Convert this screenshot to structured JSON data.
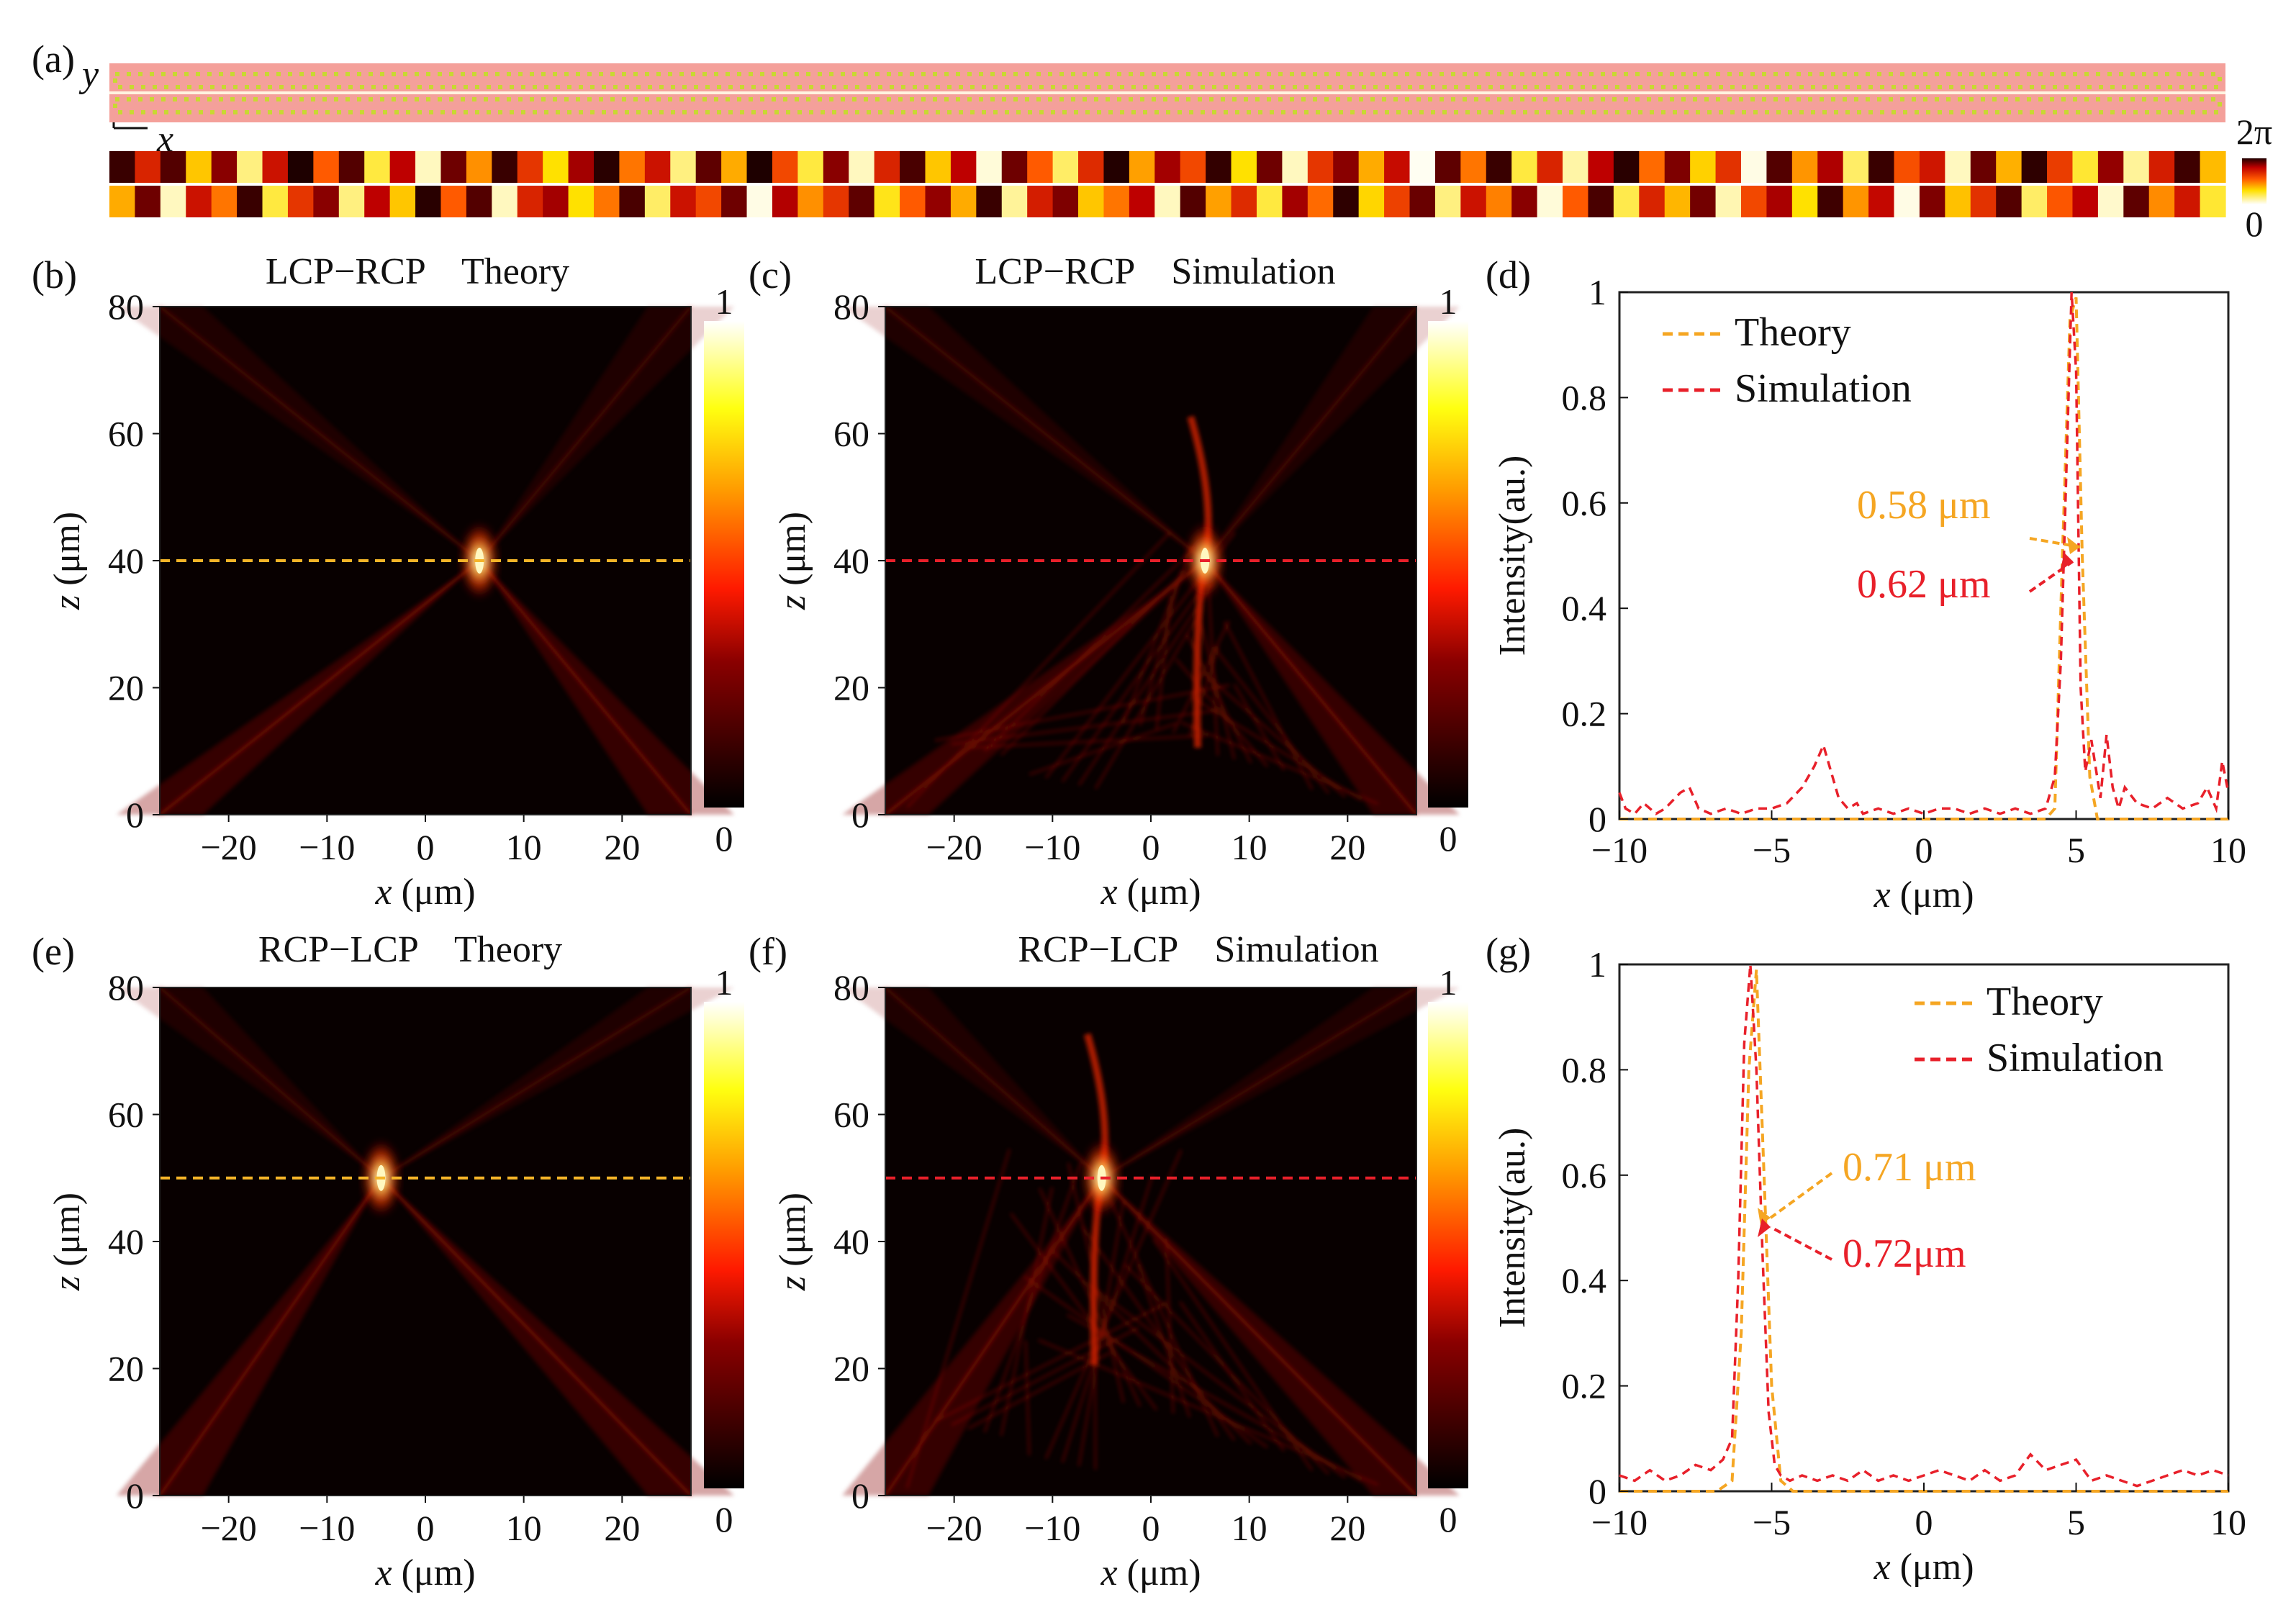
{
  "panel_a": {
    "label": "(a)",
    "axis_y": "y",
    "axis_x": "x",
    "colorbar": {
      "max": "2π",
      "min": "0"
    },
    "phase_rows": [
      [
        0.05,
        0.4,
        0.1,
        0.75,
        0.2,
        0.9,
        0.35,
        0.0,
        0.55,
        0.1,
        0.85,
        0.3,
        0.95,
        0.15,
        0.65,
        0.05,
        0.45,
        0.8,
        0.25,
        0.02,
        0.6,
        0.35,
        0.9,
        0.12,
        0.7,
        0.0,
        0.5,
        0.85,
        0.2,
        0.95,
        0.4,
        0.08,
        0.75,
        0.3,
        0.97,
        0.15,
        0.55,
        0.88,
        0.42,
        0.01,
        0.68,
        0.25,
        0.5,
        0.04,
        0.8,
        0.15,
        0.95,
        0.45,
        0.2,
        0.7,
        0.33,
        0.99,
        0.12,
        0.6,
        0.05,
        0.85,
        0.4,
        0.93,
        0.3,
        0.02,
        0.58,
        0.18,
        0.77,
        0.44,
        0.98,
        0.1,
        0.66,
        0.27,
        0.88,
        0.05,
        0.52,
        0.36,
        0.95,
        0.14,
        0.71,
        0.03,
        0.47,
        0.84,
        0.22,
        0.92,
        0.38,
        0.06,
        0.73
      ],
      [
        0.7,
        0.15,
        0.95,
        0.35,
        0.6,
        0.05,
        0.85,
        0.45,
        0.2,
        0.9,
        0.3,
        0.75,
        0.02,
        0.55,
        0.1,
        0.95,
        0.4,
        0.25,
        0.8,
        0.6,
        0.08,
        0.88,
        0.35,
        0.5,
        0.15,
        0.98,
        0.28,
        0.65,
        0.45,
        0.12,
        0.82,
        0.55,
        0.22,
        0.7,
        0.05,
        0.92,
        0.38,
        0.18,
        0.75,
        0.6,
        0.3,
        0.95,
        0.1,
        0.68,
        0.42,
        0.85,
        0.25,
        0.58,
        0.03,
        0.78,
        0.48,
        0.14,
        0.9,
        0.35,
        0.62,
        0.2,
        0.97,
        0.55,
        0.08,
        0.86,
        0.4,
        0.72,
        0.16,
        0.94,
        0.5,
        0.26,
        0.8,
        0.06,
        0.66,
        0.32,
        0.98,
        0.18,
        0.74,
        0.44,
        0.1,
        0.88,
        0.54,
        0.3,
        0.96,
        0.12,
        0.64,
        0.36,
        0.84
      ]
    ]
  },
  "panels": {
    "b": {
      "label": "(b)",
      "title": "LCP−RCP    Theory",
      "xlabel_var": "x",
      "xlabel_unit": " (μm)",
      "ylabel_var": "z",
      "ylabel_unit": " (μm)",
      "cb_max": "1",
      "cb_min": "0"
    },
    "c": {
      "label": "(c)",
      "title": "LCP−RCP    Simulation",
      "xlabel_var": "x",
      "xlabel_unit": " (μm)",
      "ylabel_var": "z",
      "ylabel_unit": " (μm)",
      "cb_max": "1",
      "cb_min": "0"
    },
    "d": {
      "label": "(d)",
      "xlabel_var": "x",
      "xlabel_unit": " (μm)",
      "ylabel": "Intensity(au.)",
      "legend": [
        "Theory",
        "Simulation"
      ],
      "annot_theory": "0.58 μm",
      "annot_sim": "0.62 μm"
    },
    "e": {
      "label": "(e)",
      "title": "RCP−LCP    Theory",
      "xlabel_var": "x",
      "xlabel_unit": " (μm)",
      "ylabel_var": "z",
      "ylabel_unit": " (μm)",
      "cb_max": "1",
      "cb_min": "0"
    },
    "f": {
      "label": "(f)",
      "title": "RCP−LCP    Simulation",
      "xlabel_var": "x",
      "xlabel_unit": " (μm)",
      "ylabel_var": "z",
      "ylabel_unit": " (μm)",
      "cb_max": "1",
      "cb_min": "0"
    },
    "g": {
      "label": "(g)",
      "xlabel_var": "x",
      "xlabel_unit": " (μm)",
      "ylabel": "Intensity(au.)",
      "legend": [
        "Theory",
        "Simulation"
      ],
      "annot_theory": "0.71 μm",
      "annot_sim": "0.72μm"
    }
  },
  "chart_data": [
    {
      "type": "heatmap",
      "panel": "b",
      "title": "LCP−RCP Theory",
      "xlabel": "x (μm)",
      "ylabel": "z (μm)",
      "xlim": [
        -27,
        27
      ],
      "ylim": [
        0,
        80
      ],
      "xticks": [
        -20,
        -10,
        0,
        10,
        20
      ],
      "yticks": [
        0,
        20,
        40,
        60,
        80
      ],
      "focus": {
        "x": 5.5,
        "z": 40
      },
      "guide_line_z": 40,
      "guide_color": "#f5b428",
      "colorbar": [
        0,
        1
      ]
    },
    {
      "type": "heatmap",
      "panel": "c",
      "title": "LCP−RCP Simulation",
      "xlabel": "x (μm)",
      "ylabel": "z (μm)",
      "xlim": [
        -27,
        27
      ],
      "ylim": [
        0,
        80
      ],
      "xticks": [
        -20,
        -10,
        0,
        10,
        20
      ],
      "yticks": [
        0,
        20,
        40,
        60,
        80
      ],
      "focus": {
        "x": 5.5,
        "z": 40
      },
      "guide_line_z": 40,
      "guide_color": "#e8202a",
      "colorbar": [
        0,
        1
      ]
    },
    {
      "type": "line",
      "panel": "d",
      "xlabel": "x (μm)",
      "ylabel": "Intensity(au.)",
      "xlim": [
        -10,
        10
      ],
      "ylim": [
        0,
        1
      ],
      "xticks": [
        -10,
        -5,
        0,
        5,
        10
      ],
      "yticks": [
        0,
        0.2,
        0.4,
        0.6,
        0.8,
        1
      ],
      "yticklabels": [
        "0",
        "0.2",
        "0.4",
        "0.6",
        "0.8",
        "1"
      ],
      "series": [
        {
          "name": "Theory",
          "color": "#f5a623",
          "x": [
            -10,
            4.0,
            4.3,
            4.55,
            4.8,
            5.0,
            5.2,
            5.45,
            5.7,
            10
          ],
          "y": [
            0,
            0,
            0.02,
            0.5,
            0.95,
            0.99,
            0.5,
            0.08,
            0,
            0
          ]
        },
        {
          "name": "Simulation",
          "color": "#e8202a",
          "x": [
            -10,
            -9.8,
            -9.5,
            -9.2,
            -8.8,
            -8.5,
            -8.0,
            -7.7,
            -7.4,
            -7.0,
            -6.5,
            -6.0,
            -5.5,
            -5.0,
            -4.5,
            -4.0,
            -3.6,
            -3.3,
            -3.0,
            -2.8,
            -2.5,
            -2.2,
            -2.0,
            -1.5,
            -1.0,
            -0.5,
            0,
            0.5,
            1.0,
            1.5,
            2.0,
            2.5,
            3.0,
            3.5,
            4.0,
            4.3,
            4.5,
            4.7,
            4.85,
            5.0,
            5.15,
            5.3,
            5.5,
            5.8,
            6.0,
            6.2,
            6.4,
            6.6,
            7.0,
            7.5,
            8.0,
            8.5,
            9.0,
            9.3,
            9.6,
            9.8,
            10
          ],
          "y": [
            0.05,
            0.02,
            0.01,
            0.03,
            0.01,
            0.02,
            0.05,
            0.06,
            0.02,
            0.01,
            0.02,
            0.01,
            0.02,
            0.02,
            0.03,
            0.06,
            0.1,
            0.14,
            0.08,
            0.04,
            0.02,
            0.03,
            0.01,
            0.02,
            0.01,
            0.02,
            0.01,
            0.02,
            0.02,
            0.01,
            0.02,
            0.01,
            0.02,
            0.01,
            0.02,
            0.08,
            0.3,
            0.7,
            1.0,
            0.85,
            0.25,
            0.09,
            0.15,
            0.04,
            0.16,
            0.06,
            0.02,
            0.06,
            0.03,
            0.02,
            0.04,
            0.02,
            0.03,
            0.06,
            0.02,
            0.11,
            0.05
          ]
        }
      ],
      "annotations": [
        "0.58 μm",
        "0.62 μm"
      ]
    },
    {
      "type": "heatmap",
      "panel": "e",
      "title": "RCP−LCP Theory",
      "xlabel": "x (μm)",
      "ylabel": "z (μm)",
      "xlim": [
        -27,
        27
      ],
      "ylim": [
        0,
        80
      ],
      "xticks": [
        -20,
        -10,
        0,
        10,
        20
      ],
      "yticks": [
        0,
        20,
        40,
        60,
        80
      ],
      "focus": {
        "x": -4.5,
        "z": 50
      },
      "guide_line_z": 50,
      "guide_color": "#f5b428",
      "colorbar": [
        0,
        1
      ]
    },
    {
      "type": "heatmap",
      "panel": "f",
      "title": "RCP−LCP Simulation",
      "xlabel": "x (μm)",
      "ylabel": "z (μm)",
      "xlim": [
        -27,
        27
      ],
      "ylim": [
        0,
        80
      ],
      "xticks": [
        -20,
        -10,
        0,
        10,
        20
      ],
      "yticks": [
        0,
        20,
        40,
        60,
        80
      ],
      "focus": {
        "x": -5,
        "z": 50
      },
      "guide_line_z": 50,
      "guide_color": "#e8202a",
      "colorbar": [
        0,
        1
      ]
    },
    {
      "type": "line",
      "panel": "g",
      "xlabel": "x (μm)",
      "ylabel": "Intensity(au.)",
      "xlim": [
        -10,
        10
      ],
      "ylim": [
        0,
        1
      ],
      "xticks": [
        -10,
        -5,
        0,
        5,
        10
      ],
      "yticks": [
        0,
        0.2,
        0.4,
        0.6,
        0.8,
        1
      ],
      "yticklabels": [
        "0",
        "0.2",
        "0.4",
        "0.6",
        "0.8",
        "1"
      ],
      "series": [
        {
          "name": "Theory",
          "color": "#f5a623",
          "x": [
            -10,
            -6.8,
            -6.3,
            -6.0,
            -5.75,
            -5.5,
            -5.25,
            -5.0,
            -4.7,
            -4.3,
            10
          ],
          "y": [
            0,
            0,
            0.02,
            0.3,
            0.8,
            0.99,
            0.6,
            0.2,
            0.02,
            0,
            0
          ]
        },
        {
          "name": "Simulation",
          "color": "#e8202a",
          "x": [
            -10,
            -9.5,
            -9.0,
            -8.5,
            -8.0,
            -7.5,
            -7.0,
            -6.6,
            -6.3,
            -6.1,
            -5.9,
            -5.7,
            -5.5,
            -5.3,
            -5.1,
            -4.9,
            -4.7,
            -4.4,
            -4.0,
            -3.5,
            -3.0,
            -2.5,
            -2.0,
            -1.5,
            -1.0,
            -0.5,
            0,
            0.5,
            1.0,
            1.5,
            2.0,
            2.5,
            3.0,
            3.5,
            4.0,
            4.5,
            5.0,
            5.5,
            6.0,
            6.5,
            7.0,
            7.5,
            8.0,
            8.5,
            9.0,
            9.5,
            10
          ],
          "y": [
            0.03,
            0.02,
            0.04,
            0.02,
            0.03,
            0.05,
            0.04,
            0.06,
            0.1,
            0.4,
            0.85,
            1.0,
            0.8,
            0.45,
            0.15,
            0.05,
            0.03,
            0.02,
            0.03,
            0.02,
            0.03,
            0.02,
            0.04,
            0.02,
            0.03,
            0.02,
            0.03,
            0.04,
            0.03,
            0.02,
            0.04,
            0.02,
            0.03,
            0.07,
            0.04,
            0.05,
            0.06,
            0.02,
            0.03,
            0.02,
            0.01,
            0.02,
            0.03,
            0.04,
            0.03,
            0.04,
            0.03
          ]
        }
      ],
      "annotations": [
        "0.71 μm",
        "0.72μm"
      ]
    }
  ]
}
